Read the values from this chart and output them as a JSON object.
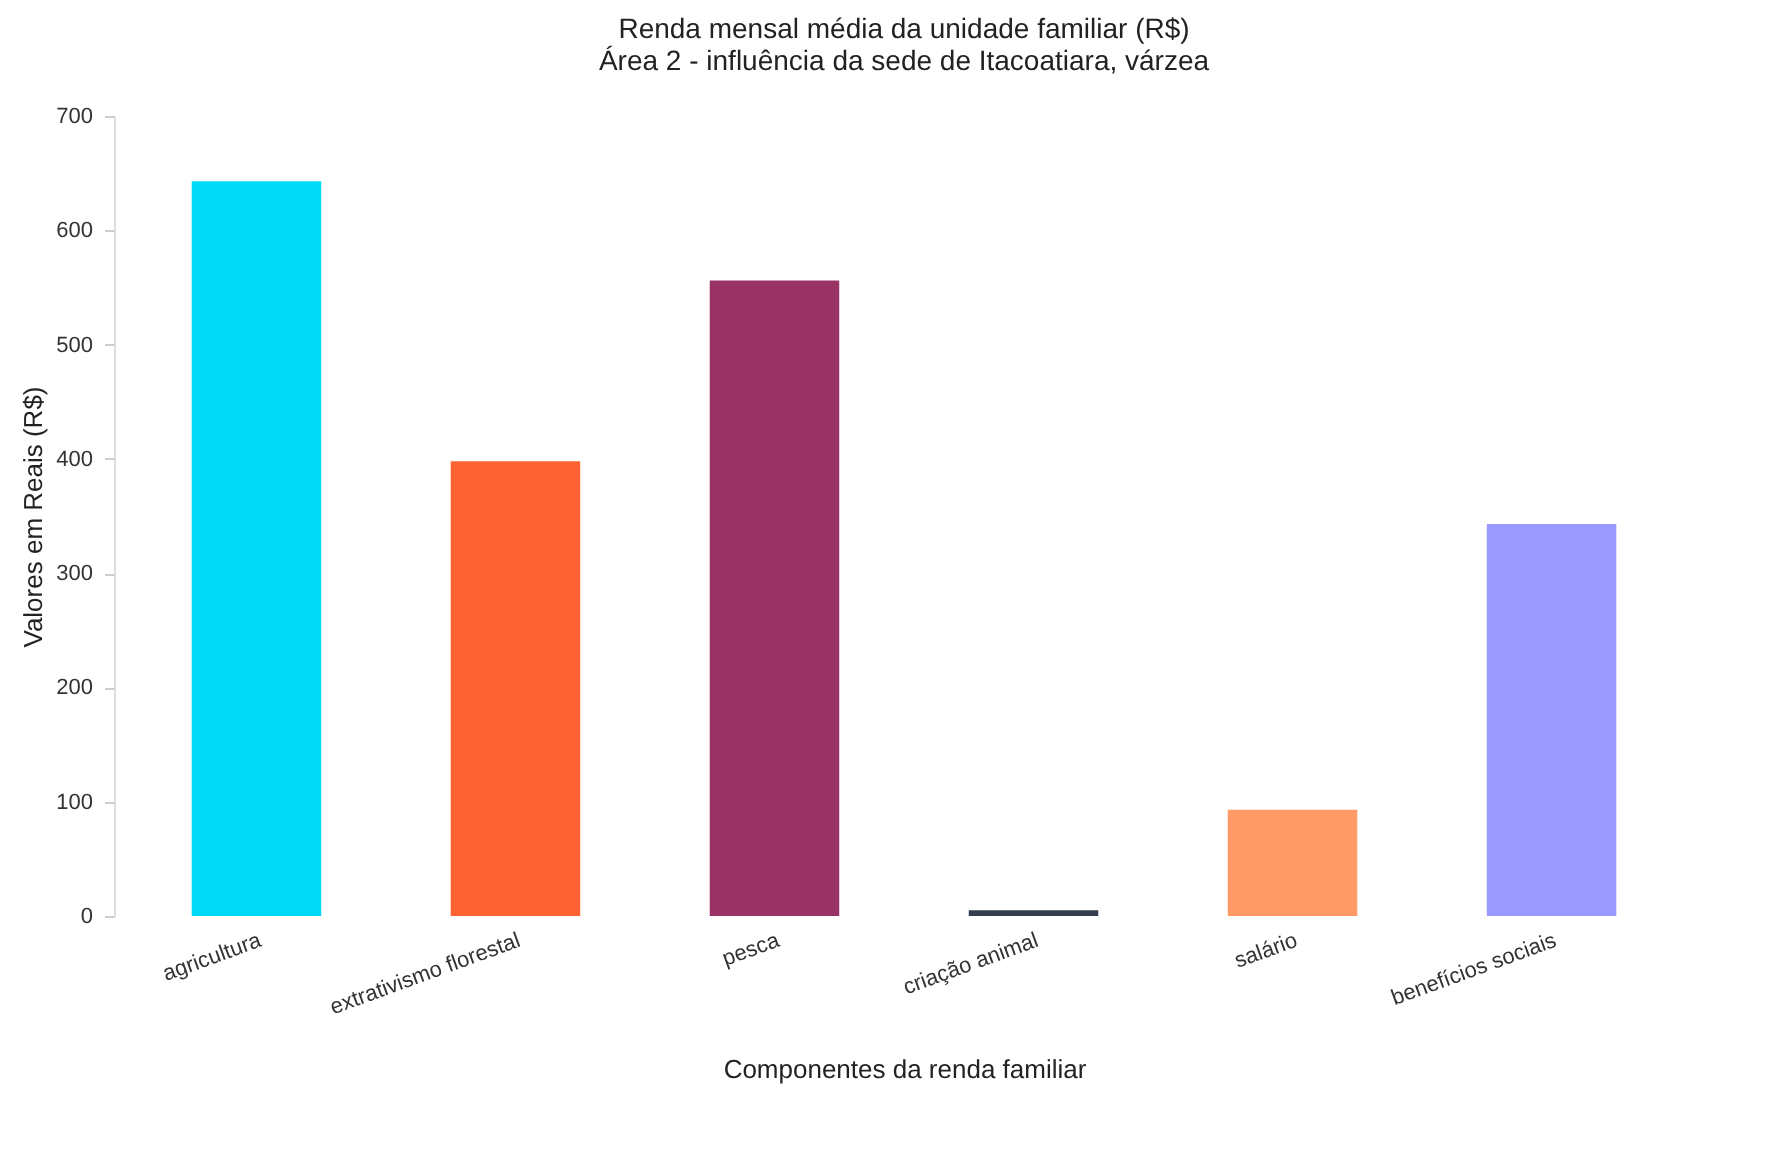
{
  "chart_data": {
    "type": "bar",
    "title": "Renda mensal média da unidade familiar (R$)",
    "subtitle": "Área 2 - influência da sede de Itacoatiara, várzea",
    "xlabel": "Componentes da renda familiar",
    "ylabel": "Valores em Reais (R$)",
    "categories": [
      "agricultura",
      "extrativismo florestal",
      "pesca",
      "criação animal",
      "salário",
      "benefícios sociais"
    ],
    "values": [
      643,
      398,
      556,
      5,
      93,
      343
    ],
    "colors": [
      "#00d9f7",
      "#ff6333",
      "#993366",
      "#333f50",
      "#ff9966",
      "#9999ff"
    ],
    "ylim": [
      0,
      700
    ],
    "yticks": [
      0,
      100,
      200,
      300,
      400,
      500,
      600,
      700
    ],
    "grid": false
  }
}
